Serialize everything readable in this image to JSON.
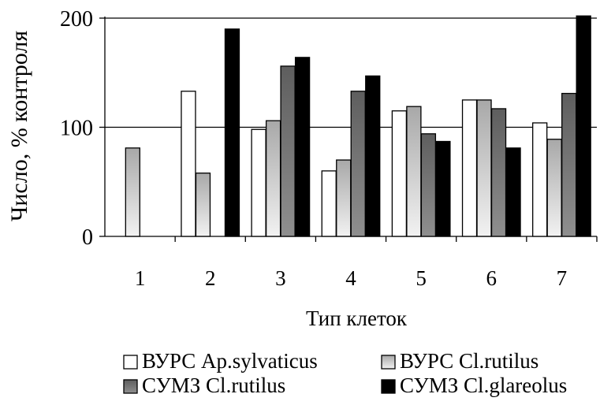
{
  "chart_data": {
    "type": "bar",
    "categories": [
      "1",
      "2",
      "3",
      "4",
      "5",
      "6",
      "7"
    ],
    "xlabel": "Тип клеток",
    "ylabel": "Число, % контроля",
    "ylim": [
      0,
      200
    ],
    "yticks": [
      "0",
      "100",
      "200"
    ],
    "grid": "horizontal at 100 and 200",
    "legend_position": "bottom",
    "series": [
      {
        "name": "ВУРС Ap.sylvaticus",
        "fill": "white",
        "values": [
          null,
          133,
          98,
          60,
          115,
          125,
          104
        ]
      },
      {
        "name": "ВУРС Cl.rutilus",
        "fill": "light-gray-gradient",
        "values": [
          81,
          58,
          106,
          70,
          119,
          125,
          89
        ]
      },
      {
        "name": "СУМЗ Cl.rutilus",
        "fill": "dark-gray-gradient",
        "values": [
          null,
          null,
          156,
          133,
          94,
          117,
          131
        ]
      },
      {
        "name": "СУМЗ Cl.glareolus",
        "fill": "black",
        "values": [
          null,
          190,
          164,
          147,
          87,
          81,
          204
        ]
      }
    ]
  }
}
